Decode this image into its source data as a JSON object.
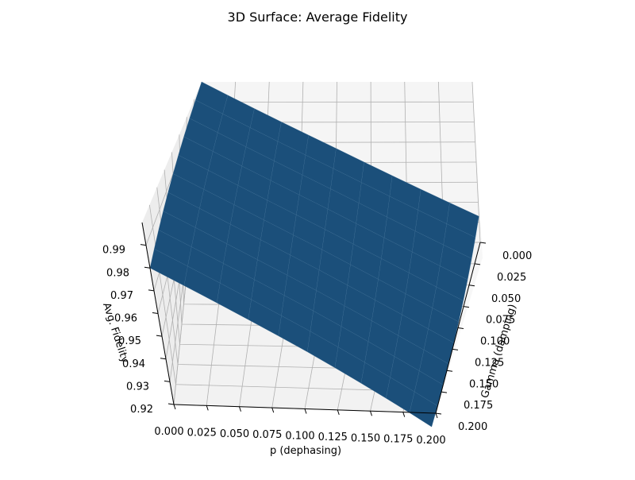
{
  "chart_data": {
    "type": "surface",
    "title": "3D Surface: Average Fidelity",
    "xlabel": "p (dephasing)",
    "ylabel": "Gamma (damping)",
    "zlabel": "Avg. Fidelity",
    "xlim": [
      0,
      0.2
    ],
    "ylim": [
      0,
      0.2
    ],
    "zlim": [
      0.92,
      1.0
    ],
    "x_ticks": [
      "0.000",
      "0.025",
      "0.050",
      "0.075",
      "0.100",
      "0.125",
      "0.150",
      "0.175",
      "0.200"
    ],
    "y_ticks": [
      "0.000",
      "0.025",
      "0.050",
      "0.075",
      "0.100",
      "0.125",
      "0.150",
      "0.175",
      "0.200"
    ],
    "z_ticks": [
      "0.92",
      "0.93",
      "0.94",
      "0.95",
      "0.96",
      "0.97",
      "0.98",
      "0.99"
    ],
    "grid": true,
    "surface_color": "#1b4f7a",
    "p_values": [
      0,
      0.1,
      0.2
    ],
    "gamma_values": [
      0,
      0.1,
      0.2
    ],
    "fidelity_grid": [
      [
        1.0,
        0.967,
        0.933
      ],
      [
        0.99,
        0.957,
        0.923
      ],
      [
        0.98,
        0.947,
        0.913
      ]
    ]
  }
}
